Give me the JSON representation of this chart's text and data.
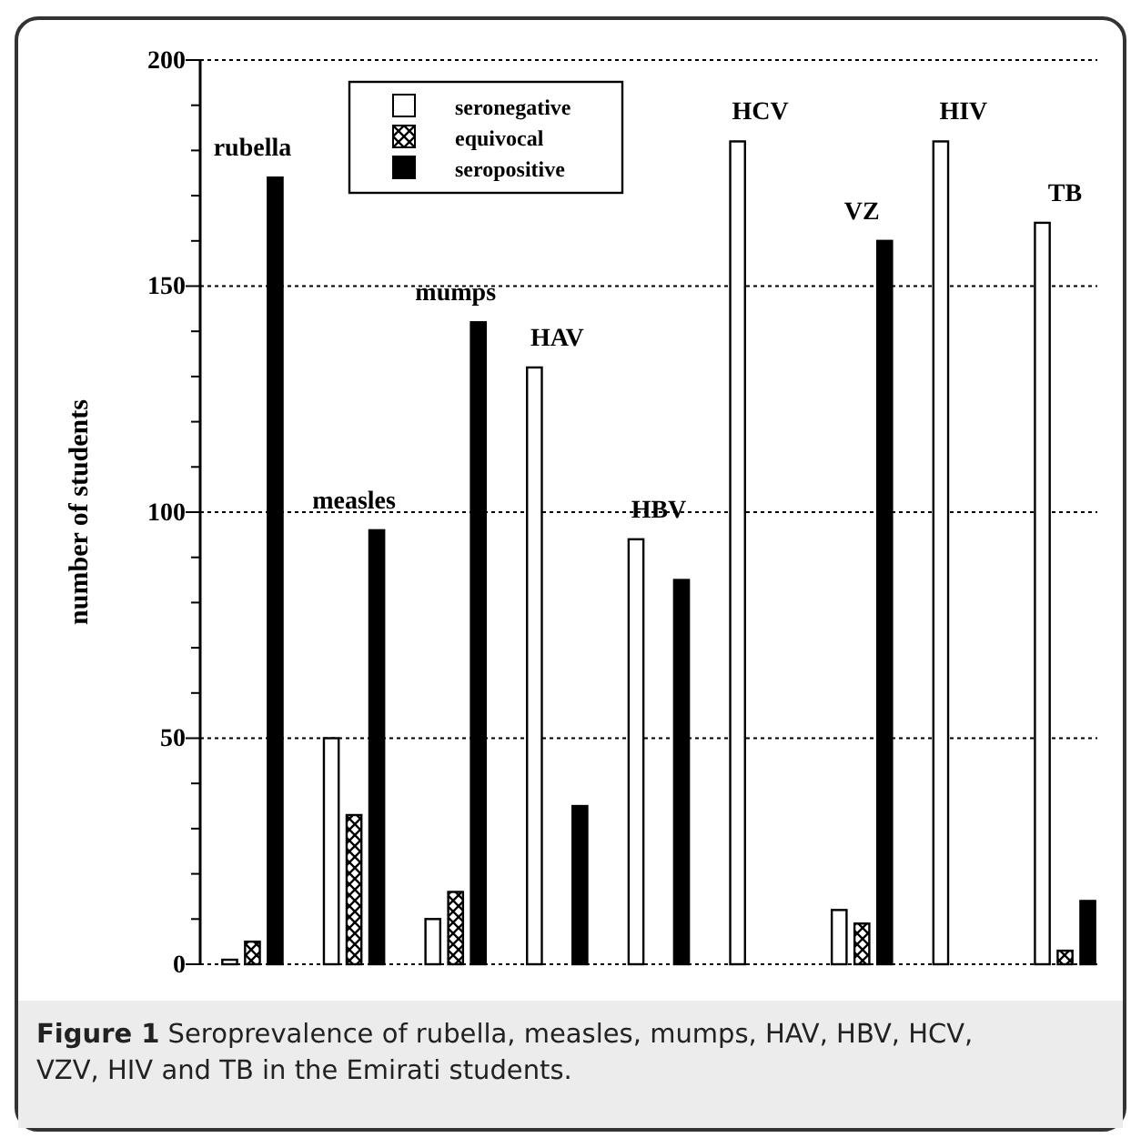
{
  "chart_data": {
    "type": "bar",
    "categories": [
      "rubella",
      "measles",
      "mumps",
      "HAV",
      "HBV",
      "HCV",
      "VZ",
      "HIV",
      "TB"
    ],
    "ylabel": "number of students",
    "series": [
      {
        "name": "seronegative",
        "color": "#ffffff",
        "values": [
          1,
          50,
          10,
          132,
          94,
          182,
          12,
          182,
          164
        ]
      },
      {
        "name": "equivocal",
        "color": "#000000",
        "values": [
          5,
          33,
          16,
          0,
          0,
          0,
          9,
          0,
          3
        ]
      },
      {
        "name": "seropositive",
        "color": "#000000",
        "values": [
          174,
          96,
          142,
          35,
          85,
          0,
          160,
          0,
          14
        ]
      }
    ],
    "ylim": [
      0,
      200
    ],
    "yticks": [
      0,
      {
        "value": 10,
        "label": null
      },
      {
        "value": 20,
        "label": null
      },
      {
        "value": 30,
        "label": null
      },
      {
        "value": 40,
        "label": null
      },
      50,
      {
        "value": 60,
        "label": null
      },
      {
        "value": 70,
        "label": null
      },
      {
        "value": 80,
        "label": null
      },
      {
        "value": 90,
        "label": null
      },
      100,
      {
        "value": 110,
        "label": null
      },
      {
        "value": 120,
        "label": null
      },
      {
        "value": 130,
        "label": null
      },
      {
        "value": 140,
        "label": null
      },
      150,
      {
        "value": 160,
        "label": null
      },
      {
        "value": 170,
        "label": null
      },
      {
        "value": 180,
        "label": null
      },
      {
        "value": 190,
        "label": null
      },
      200
    ],
    "grid": "y",
    "legend": "top",
    "annotations": [
      "Figure 1 Seroprevalence of rubella, measles, mumps, HAV, HBV, HCV, VZV, HIV and TB in the Emirati students."
    ]
  }
}
